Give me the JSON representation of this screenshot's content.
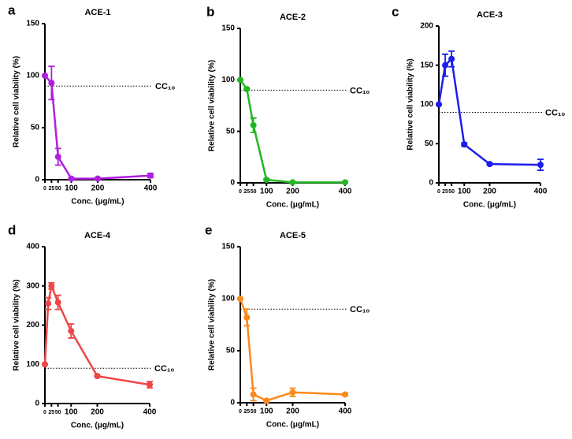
{
  "chart_data": [
    {
      "type": "line",
      "panel": "a",
      "title": "ACE-1",
      "x_label": "Conc. (μg/mL)",
      "y_label": "Relative cell viability (%)",
      "x": [
        0,
        25,
        50,
        100,
        200,
        400
      ],
      "series": [
        {
          "name": "ACE-1",
          "color": "#b01fe0",
          "values": [
            100,
            93,
            22,
            1,
            1,
            4
          ],
          "errors": [
            0,
            16,
            8,
            1,
            1,
            2
          ]
        }
      ],
      "xlim": [
        0,
        400
      ],
      "xticks": [
        0,
        25,
        50,
        100,
        200,
        400
      ],
      "ylim": [
        0,
        150
      ],
      "yticks": [
        0,
        50,
        100,
        150
      ],
      "reference_line": {
        "value": 90,
        "label": "CC₁₀"
      }
    },
    {
      "type": "line",
      "panel": "b",
      "title": "ACE-2",
      "x_label": "Conc. (μg/mL)",
      "y_label": "Relative cell viability (%)",
      "x": [
        0,
        25,
        50,
        100,
        200,
        400
      ],
      "series": [
        {
          "name": "ACE-2",
          "color": "#21b821",
          "values": [
            100,
            91,
            56,
            3,
            0.5,
            0.5
          ],
          "errors": [
            0,
            1,
            7,
            1,
            0,
            0
          ]
        }
      ],
      "xlim": [
        0,
        400
      ],
      "xticks": [
        0,
        25,
        50,
        100,
        200,
        400
      ],
      "ylim": [
        0,
        150
      ],
      "yticks": [
        0,
        50,
        100,
        150
      ],
      "reference_line": {
        "value": 90,
        "label": "CC₁₀"
      }
    },
    {
      "type": "line",
      "panel": "c",
      "title": "ACE-3",
      "x_label": "Conc. (μg/mL)",
      "y_label": "Relative cell viability (%)",
      "x": [
        0,
        25,
        50,
        100,
        200,
        400
      ],
      "series": [
        {
          "name": "ACE-3",
          "color": "#1d1ded",
          "values": [
            100,
            150,
            158,
            49,
            24,
            23
          ],
          "errors": [
            0,
            14,
            10,
            2,
            1,
            7
          ]
        }
      ],
      "xlim": [
        0,
        400
      ],
      "xticks": [
        0,
        25,
        50,
        100,
        200,
        400
      ],
      "ylim": [
        0,
        200
      ],
      "yticks": [
        0,
        50,
        100,
        150,
        200
      ],
      "reference_line": {
        "value": 90,
        "label": "CC₁₀"
      }
    },
    {
      "type": "line",
      "panel": "d",
      "title": "ACE-4",
      "x_label": "Conc. (μg/mL)",
      "y_label": "Relative cell viability (%)",
      "x": [
        0,
        12.5,
        25,
        50,
        100,
        200,
        400
      ],
      "series": [
        {
          "name": "ACE-4",
          "color": "#ee4646",
          "values": [
            100,
            255,
            300,
            258,
            185,
            70,
            48
          ],
          "errors": [
            0,
            15,
            8,
            18,
            18,
            2,
            8
          ]
        }
      ],
      "xlim": [
        0,
        400
      ],
      "xticks": [
        0,
        25,
        50,
        100,
        200,
        400
      ],
      "ylim": [
        0,
        400
      ],
      "yticks": [
        0,
        100,
        200,
        300,
        400
      ],
      "reference_line": {
        "value": 90,
        "label": "CC₁₀"
      }
    },
    {
      "type": "line",
      "panel": "e",
      "title": "ACE-5",
      "x_label": "Conc. (μg/mL)",
      "y_label": "Relative cell viability (%)",
      "x": [
        0,
        25,
        50,
        100,
        200,
        400
      ],
      "series": [
        {
          "name": "ACE-5",
          "color": "#fb8a1c",
          "values": [
            100,
            82,
            8,
            2,
            10,
            8
          ],
          "errors": [
            0,
            8,
            6,
            1,
            4,
            1
          ]
        }
      ],
      "xlim": [
        0,
        400
      ],
      "xticks": [
        0,
        25,
        50,
        100,
        200,
        400
      ],
      "ylim": [
        0,
        150
      ],
      "yticks": [
        0,
        50,
        100,
        150
      ],
      "reference_line": {
        "value": 90,
        "label": "CC₁₀"
      }
    }
  ]
}
